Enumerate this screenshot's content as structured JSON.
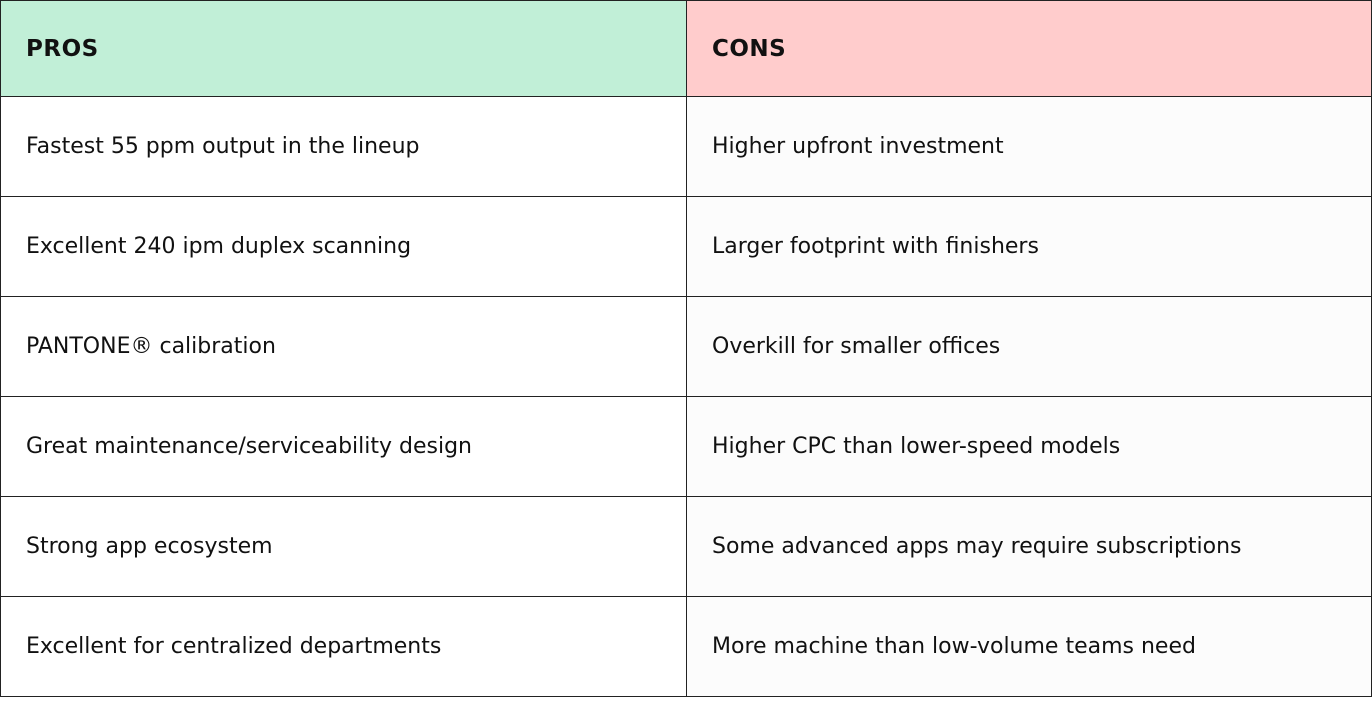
{
  "header": {
    "pros": "PROS",
    "cons": "CONS"
  },
  "colors": {
    "pros_header": "#c1efd7",
    "cons_header": "#ffcccc"
  },
  "rows": [
    {
      "pro": "Fastest 55 ppm output in the lineup",
      "con": "Higher upfront investment"
    },
    {
      "pro": "Excellent 240 ipm duplex scanning",
      "con": "Larger footprint with finishers"
    },
    {
      "pro": "PANTONE® calibration",
      "con": "Overkill for smaller offices"
    },
    {
      "pro": "Great maintenance/serviceability design",
      "con": "Higher CPC than lower-speed models"
    },
    {
      "pro": "Strong app ecosystem",
      "con": "Some advanced apps may require subscriptions"
    },
    {
      "pro": "Excellent for centralized departments",
      "con": "More machine than low-volume teams need"
    }
  ]
}
